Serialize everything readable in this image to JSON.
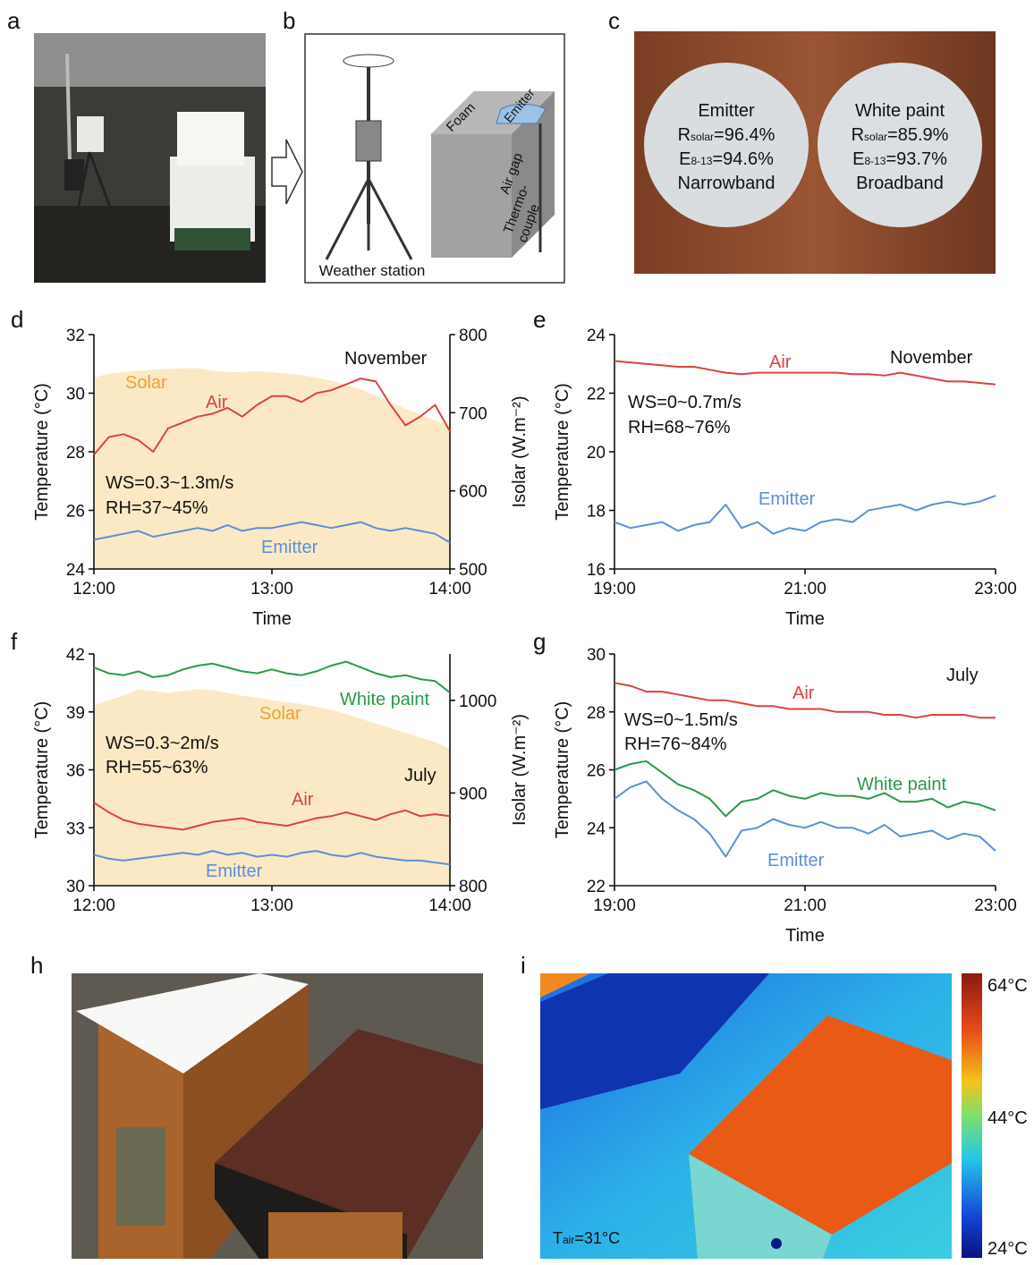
{
  "panel_labels": [
    "a",
    "b",
    "c",
    "d",
    "e",
    "f",
    "g",
    "h",
    "i"
  ],
  "photo_b": {
    "caption": "Weather station",
    "labels": [
      "Foam",
      "Emitter",
      "Air gap",
      "Thermo-",
      "couple"
    ]
  },
  "photo_c": {
    "samples": [
      {
        "name": "Emitter",
        "lines": [
          {
            "symbol": "R",
            "sub": "solar",
            "value": "=96.4%"
          },
          {
            "symbol": "E",
            "sub": "8-13",
            "value": "=94.6%"
          }
        ],
        "band": "Narrowband"
      },
      {
        "name": "White paint",
        "lines": [
          {
            "symbol": "R",
            "sub": "solar",
            "value": "=85.9%"
          },
          {
            "symbol": "E",
            "sub": "8-13",
            "value": "=93.7%"
          }
        ],
        "band": "Broadband"
      }
    ]
  },
  "photo_i": {
    "scale": [
      "64°C",
      "44°C",
      "24°C"
    ],
    "tair": {
      "symbol": "T",
      "sub": "air",
      "value": "=31°C"
    }
  },
  "chart_data": [
    {
      "type": "line",
      "xlabel": "Time",
      "ylabel": "Temperature (°C)",
      "y2label": "Isolar (W.m⁻²)",
      "x": [
        "12:00",
        "12:05",
        "12:10",
        "12:15",
        "12:20",
        "12:25",
        "12:30",
        "12:35",
        "12:40",
        "12:45",
        "12:50",
        "12:55",
        "13:00",
        "13:05",
        "13:10",
        "13:15",
        "13:20",
        "13:25",
        "13:30",
        "13:35",
        "13:40",
        "13:45",
        "13:50",
        "13:55",
        "14:00"
      ],
      "xlim": [
        "12:00",
        "14:00"
      ],
      "xticks": [
        "12:00",
        "13:00",
        "14:00"
      ],
      "ylim": [
        24,
        32
      ],
      "yticks": [
        24,
        26,
        28,
        30,
        32
      ],
      "y2lim": [
        500,
        800
      ],
      "y2ticks": [
        500,
        600,
        700,
        800
      ],
      "annotations": [
        "November",
        "WS=0.3~1.3m/s",
        "RH=37~45%"
      ],
      "series": [
        {
          "name": "Solar",
          "style": "area",
          "axis": "y2",
          "color": "#fbe9c6",
          "label_color": "#f0a030",
          "values": [
            745,
            750,
            752,
            754,
            755,
            756,
            757,
            757,
            754,
            752,
            752,
            753,
            752,
            750,
            748,
            745,
            741,
            736,
            730,
            722,
            714,
            705,
            698,
            690,
            684
          ]
        },
        {
          "name": "Air",
          "color": "#d9443f",
          "values": [
            27.9,
            28.5,
            28.6,
            28.4,
            28.0,
            28.8,
            29.0,
            29.2,
            29.3,
            29.5,
            29.2,
            29.6,
            29.9,
            29.9,
            29.7,
            30.0,
            30.1,
            30.3,
            30.5,
            30.4,
            29.6,
            28.9,
            29.2,
            29.6,
            28.7
          ]
        },
        {
          "name": "Emitter",
          "color": "#5b8fd6",
          "values": [
            25.0,
            25.1,
            25.2,
            25.3,
            25.1,
            25.2,
            25.3,
            25.4,
            25.3,
            25.5,
            25.3,
            25.4,
            25.4,
            25.5,
            25.6,
            25.5,
            25.4,
            25.5,
            25.6,
            25.4,
            25.3,
            25.4,
            25.3,
            25.2,
            24.9
          ]
        }
      ]
    },
    {
      "type": "line",
      "xlabel": "Time",
      "ylabel": "Temperature (°C)",
      "x": [
        "19:00",
        "19:10",
        "19:20",
        "19:30",
        "19:40",
        "19:50",
        "20:00",
        "20:10",
        "20:20",
        "20:30",
        "20:40",
        "20:50",
        "21:00",
        "21:10",
        "21:20",
        "21:30",
        "21:40",
        "21:50",
        "22:00",
        "22:10",
        "22:20",
        "22:30",
        "22:40",
        "22:50",
        "23:00"
      ],
      "xlim": [
        "19:00",
        "23:00"
      ],
      "xticks": [
        "19:00",
        "21:00",
        "23:00"
      ],
      "ylim": [
        16,
        24
      ],
      "yticks": [
        16,
        18,
        20,
        22,
        24
      ],
      "annotations": [
        "November",
        "WS=0~0.7m/s",
        "RH=68~76%"
      ],
      "series": [
        {
          "name": "Air",
          "color": "#d9443f",
          "values": [
            23.1,
            23.05,
            23.0,
            22.95,
            22.9,
            22.9,
            22.8,
            22.7,
            22.65,
            22.7,
            22.7,
            22.7,
            22.7,
            22.7,
            22.7,
            22.65,
            22.65,
            22.6,
            22.7,
            22.6,
            22.5,
            22.4,
            22.4,
            22.35,
            22.3
          ]
        },
        {
          "name": "Emitter",
          "color": "#5b8fd6",
          "values": [
            17.6,
            17.4,
            17.5,
            17.6,
            17.3,
            17.5,
            17.6,
            18.2,
            17.4,
            17.6,
            17.2,
            17.4,
            17.3,
            17.6,
            17.7,
            17.6,
            18.0,
            18.1,
            18.2,
            18.0,
            18.2,
            18.3,
            18.2,
            18.3,
            18.5
          ]
        }
      ]
    },
    {
      "type": "line",
      "ylabel": "Temperature (°C)",
      "y2label": "Isolar (W.m⁻²)",
      "x": [
        "12:00",
        "12:05",
        "12:10",
        "12:15",
        "12:20",
        "12:25",
        "12:30",
        "12:35",
        "12:40",
        "12:45",
        "12:50",
        "12:55",
        "13:00",
        "13:05",
        "13:10",
        "13:15",
        "13:20",
        "13:25",
        "13:30",
        "13:35",
        "13:40",
        "13:45",
        "13:50",
        "13:55",
        "14:00"
      ],
      "xlim": [
        "12:00",
        "14:00"
      ],
      "xticks": [
        "12:00",
        "13:00",
        "14:00"
      ],
      "ylim": [
        30,
        42
      ],
      "yticks": [
        30,
        33,
        36,
        39,
        42
      ],
      "y2lim": [
        800,
        1050
      ],
      "y2ticks": [
        800,
        900,
        1000
      ],
      "annotations": [
        "July",
        "WS=0.3~2m/s",
        "RH=55~63%"
      ],
      "series": [
        {
          "name": "Solar",
          "style": "area",
          "axis": "y2",
          "color": "#fbe9c6",
          "label_color": "#f0a030",
          "values": [
            995,
            1000,
            1005,
            1012,
            1010,
            1008,
            1010,
            1012,
            1011,
            1008,
            1005,
            1003,
            1000,
            998,
            996,
            993,
            990,
            985,
            980,
            975,
            970,
            965,
            960,
            955,
            948
          ]
        },
        {
          "name": "White paint",
          "color": "#2a9a4a",
          "values": [
            41.3,
            41.0,
            40.9,
            41.1,
            40.8,
            40.9,
            41.2,
            41.4,
            41.5,
            41.3,
            41.1,
            41.0,
            41.2,
            41.0,
            40.9,
            41.1,
            41.4,
            41.6,
            41.3,
            41.0,
            40.8,
            40.9,
            40.7,
            40.6,
            40.0
          ]
        },
        {
          "name": "Air",
          "color": "#d9443f",
          "values": [
            34.3,
            33.8,
            33.4,
            33.2,
            33.1,
            33.0,
            32.9,
            33.1,
            33.3,
            33.4,
            33.5,
            33.3,
            33.2,
            33.1,
            33.3,
            33.5,
            33.6,
            33.8,
            33.6,
            33.4,
            33.7,
            33.9,
            33.6,
            33.7,
            33.6
          ]
        },
        {
          "name": "Emitter",
          "color": "#5b8fd6",
          "values": [
            31.6,
            31.4,
            31.3,
            31.4,
            31.5,
            31.6,
            31.7,
            31.6,
            31.8,
            31.6,
            31.7,
            31.5,
            31.6,
            31.5,
            31.7,
            31.8,
            31.6,
            31.5,
            31.7,
            31.5,
            31.4,
            31.3,
            31.3,
            31.2,
            31.1
          ]
        }
      ]
    },
    {
      "type": "line",
      "xlabel": "Time",
      "ylabel": "Temperature (°C)",
      "x": [
        "19:00",
        "19:10",
        "19:20",
        "19:30",
        "19:40",
        "19:50",
        "20:00",
        "20:10",
        "20:20",
        "20:30",
        "20:40",
        "20:50",
        "21:00",
        "21:10",
        "21:20",
        "21:30",
        "21:40",
        "21:50",
        "22:00",
        "22:10",
        "22:20",
        "22:30",
        "22:40",
        "22:50",
        "23:00"
      ],
      "xlim": [
        "19:00",
        "23:00"
      ],
      "xticks": [
        "19:00",
        "21:00",
        "23:00"
      ],
      "ylim": [
        22,
        30
      ],
      "yticks": [
        22,
        24,
        26,
        28,
        30
      ],
      "annotations": [
        "July",
        "WS=0~1.5m/s",
        "RH=76~84%"
      ],
      "series": [
        {
          "name": "Air",
          "color": "#d9443f",
          "values": [
            29.0,
            28.9,
            28.7,
            28.7,
            28.6,
            28.5,
            28.4,
            28.4,
            28.3,
            28.2,
            28.2,
            28.1,
            28.1,
            28.1,
            28.0,
            28.0,
            28.0,
            27.9,
            27.9,
            27.8,
            27.9,
            27.9,
            27.9,
            27.8,
            27.8
          ]
        },
        {
          "name": "White paint",
          "color": "#2a9a4a",
          "values": [
            26.0,
            26.2,
            26.3,
            25.9,
            25.5,
            25.3,
            25.0,
            24.4,
            24.9,
            25.0,
            25.3,
            25.1,
            25.0,
            25.2,
            25.1,
            25.1,
            25.0,
            25.2,
            24.9,
            24.9,
            25.0,
            24.7,
            24.9,
            24.8,
            24.6
          ]
        },
        {
          "name": "Emitter",
          "color": "#5b8fd6",
          "values": [
            25.0,
            25.4,
            25.6,
            25.0,
            24.6,
            24.3,
            23.8,
            23.0,
            23.9,
            24.0,
            24.3,
            24.1,
            24.0,
            24.2,
            24.0,
            24.0,
            23.8,
            24.1,
            23.7,
            23.8,
            23.9,
            23.6,
            23.8,
            23.7,
            23.2
          ]
        }
      ]
    }
  ]
}
